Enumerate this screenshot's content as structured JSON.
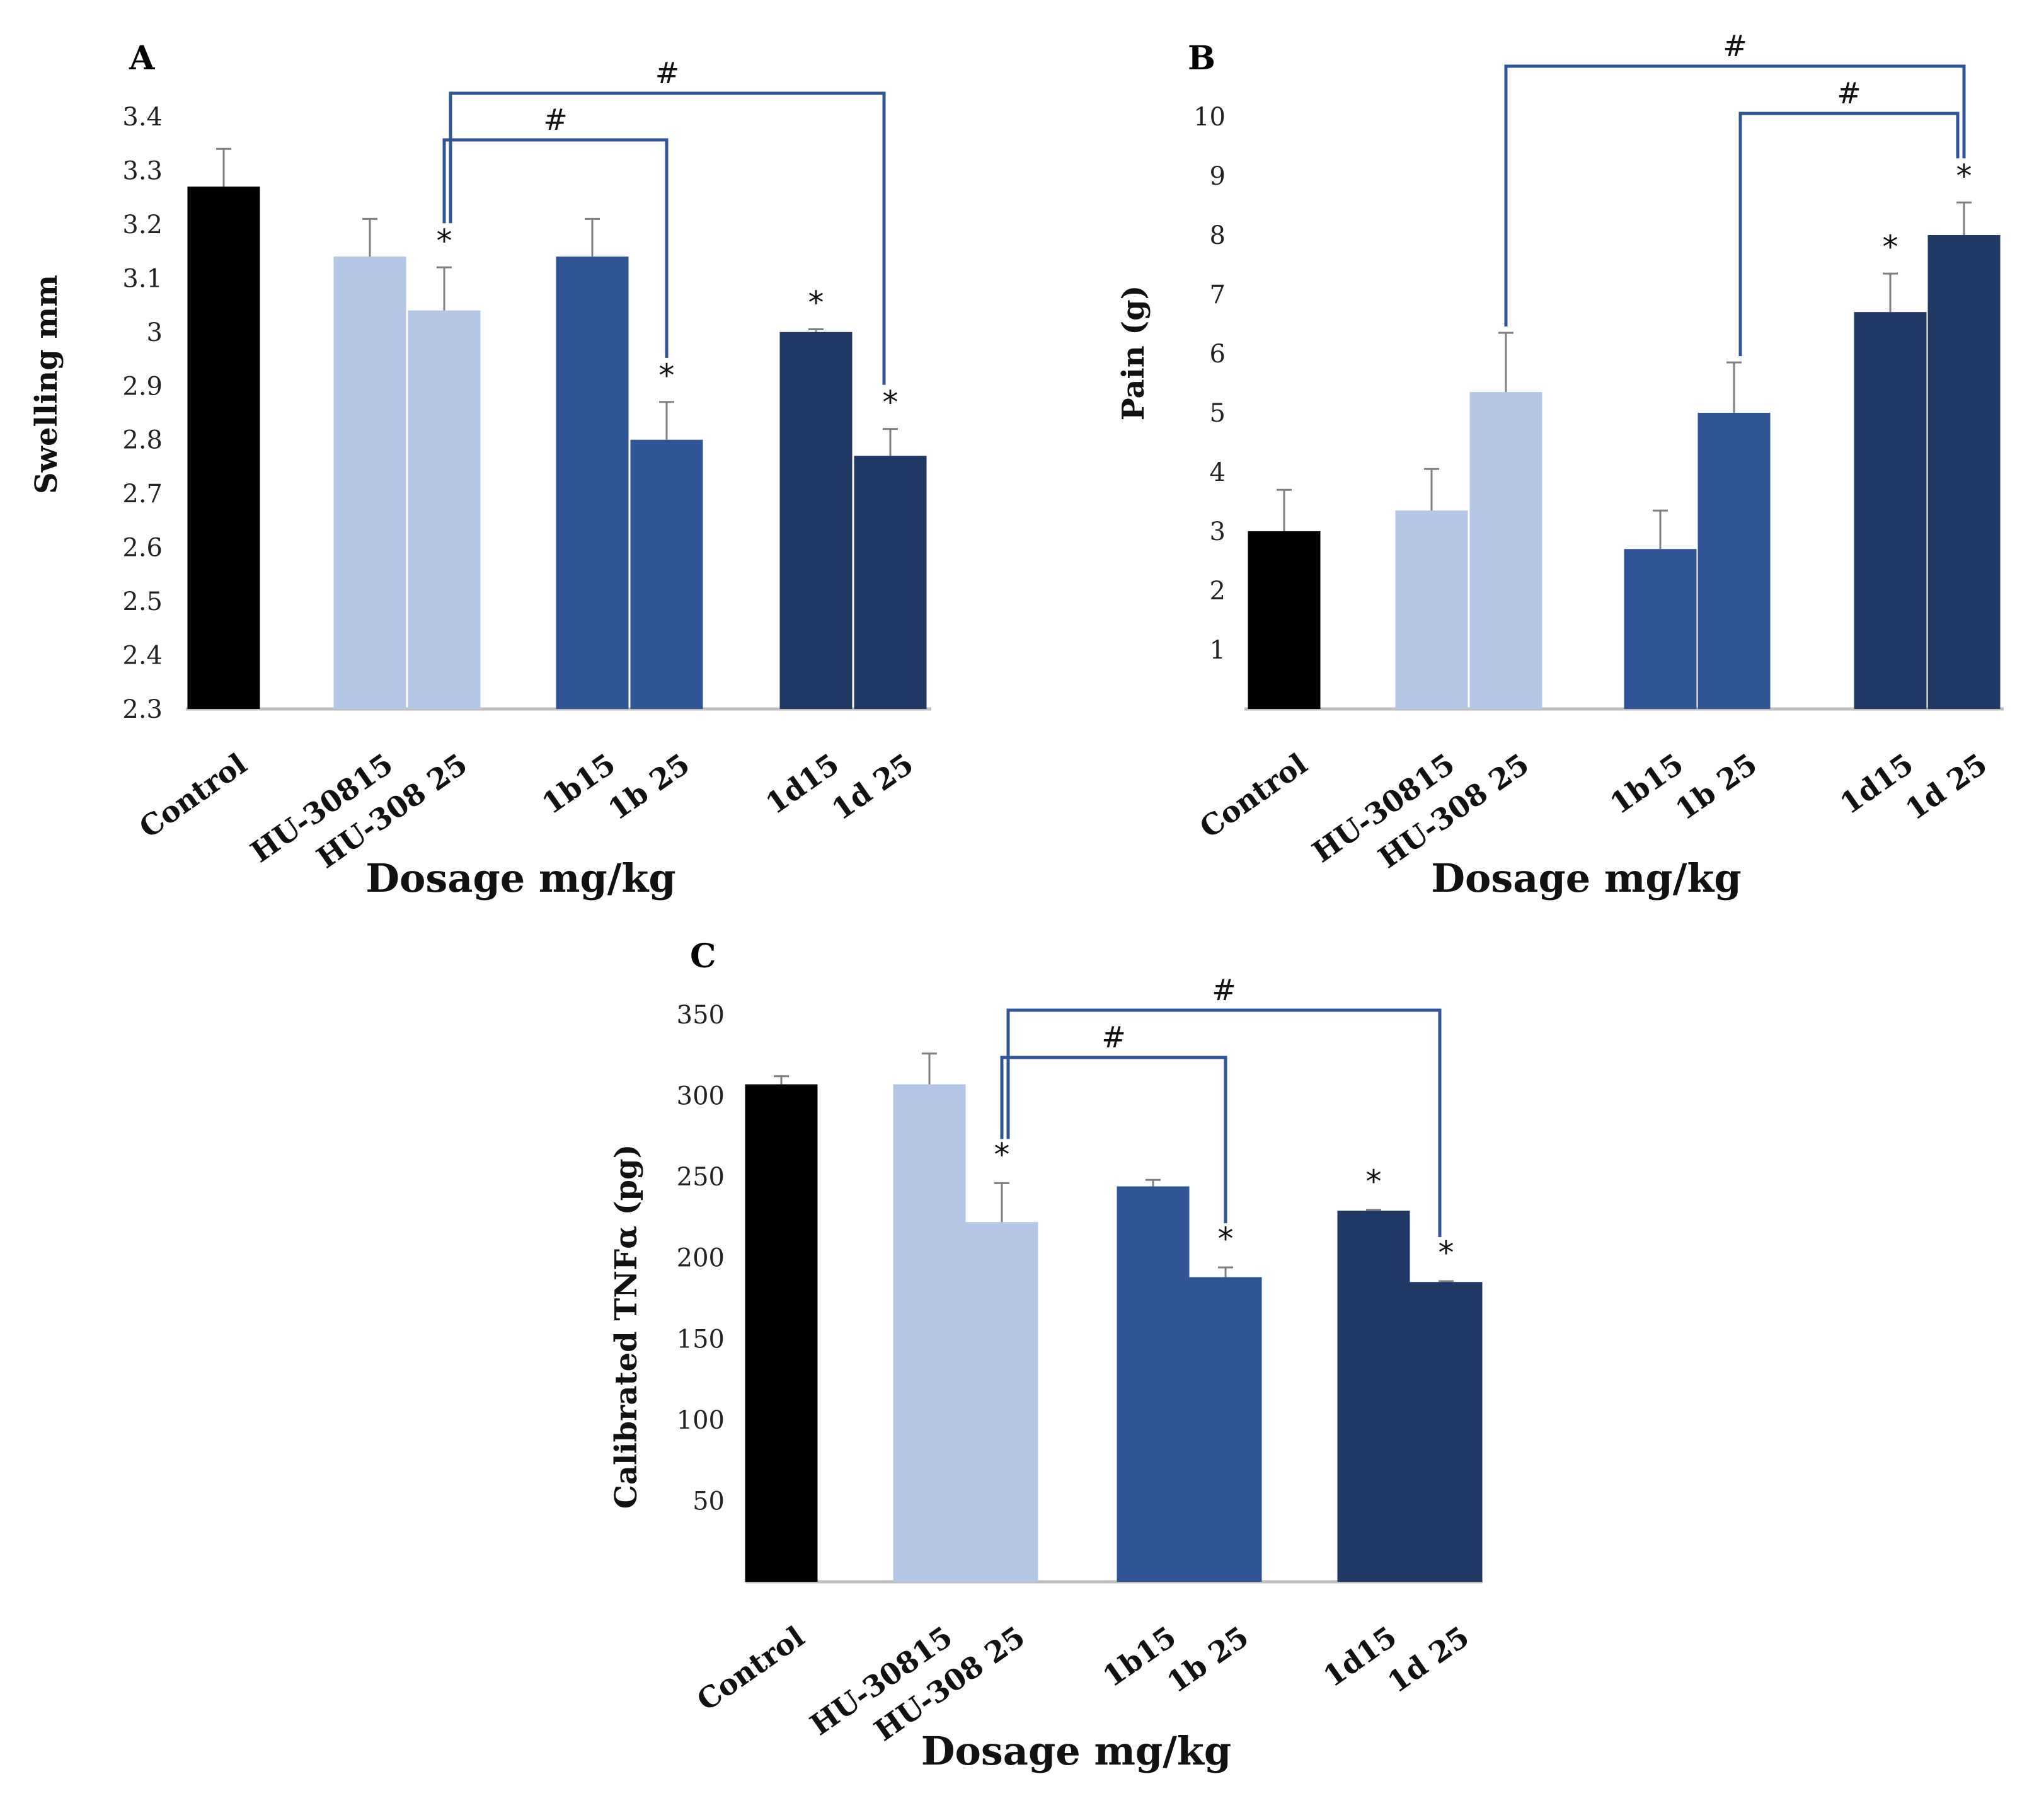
{
  "chart_data": [
    {
      "type": "bar",
      "panel": "A",
      "title": "",
      "xlabel": "Dosage mg/kg",
      "ylabel": "Swelling mm",
      "ylim": [
        2.3,
        3.4
      ],
      "yticks": [
        "2.3",
        "2.4",
        "2.5",
        "2.6",
        "2.7",
        "2.8",
        "2.9",
        "3",
        "3.1",
        "3.2",
        "3.3",
        "3.4"
      ],
      "categories": [
        "Control",
        "HU-30815",
        "HU-308 25",
        "1b15",
        "1b 25",
        "1d15",
        "1d 25"
      ],
      "values": [
        3.27,
        3.14,
        3.04,
        3.14,
        2.8,
        3.0,
        2.77
      ],
      "errors": [
        0.07,
        0.07,
        0.08,
        0.07,
        0.07,
        0.005,
        0.05
      ],
      "significance_stars": [
        "",
        "",
        "*",
        "",
        "*",
        "*",
        "*"
      ],
      "comparisons": [
        {
          "from": "HU-308 25",
          "to": "1b 25",
          "label": "#"
        },
        {
          "from": "HU-308 25",
          "to": "1d 25",
          "label": "#"
        }
      ],
      "colors": [
        "#000000",
        "#b4c7e7",
        "#b4c7e7",
        "#2f5597",
        "#2f5597",
        "#1f3864",
        "#1f3864"
      ]
    },
    {
      "type": "bar",
      "panel": "B",
      "title": "",
      "xlabel": "Dosage mg/kg",
      "ylabel": "Pain (g)",
      "ylim": [
        0,
        10
      ],
      "yticks": [
        "1",
        "2",
        "3",
        "4",
        "5",
        "6",
        "7",
        "8",
        "9",
        "10"
      ],
      "categories": [
        "Control",
        "HU-30815",
        "HU-308 25",
        "1b15",
        "1b 25",
        "1d15",
        "1d 25"
      ],
      "values": [
        3.0,
        3.35,
        5.35,
        2.7,
        5.0,
        6.7,
        8.0
      ],
      "errors": [
        0.7,
        0.7,
        1.0,
        0.65,
        0.85,
        0.65,
        0.55
      ],
      "significance_stars": [
        "",
        "",
        "",
        "",
        "",
        "*",
        "*"
      ],
      "comparisons": [
        {
          "from": "HU-308 25",
          "to": "1d 25",
          "label": "#"
        },
        {
          "from": "1b 25",
          "to": "1d 25",
          "label": "#"
        }
      ],
      "colors": [
        "#000000",
        "#b4c7e7",
        "#b4c7e7",
        "#2f5597",
        "#2f5597",
        "#1f3864",
        "#1f3864"
      ]
    },
    {
      "type": "bar",
      "panel": "C",
      "title": "",
      "xlabel": "Dosage mg/kg",
      "ylabel": "Calibrated TNFα (pg)",
      "ylim": [
        0,
        350
      ],
      "yticks": [
        "50",
        "100",
        "150",
        "200",
        "250",
        "300",
        "350"
      ],
      "categories": [
        "Control",
        "HU-30815",
        "HU-308 25",
        "1b15",
        "1b 25",
        "1d15",
        "1d 25"
      ],
      "values": [
        307,
        307,
        222,
        244,
        188,
        229,
        185
      ],
      "errors": [
        5,
        19,
        24,
        4,
        6,
        0.5,
        0.5
      ],
      "significance_stars": [
        "",
        "",
        "*",
        "",
        "*",
        "*",
        "*"
      ],
      "comparisons": [
        {
          "from": "HU-308 25",
          "to": "1b 25",
          "label": "#"
        },
        {
          "from": "HU-308 25",
          "to": "1d 25",
          "label": "#"
        }
      ],
      "colors": [
        "#000000",
        "#b4c7e7",
        "#b4c7e7",
        "#2f5597",
        "#2f5597",
        "#1f3864",
        "#1f3864"
      ]
    }
  ],
  "bracket_color": "#2f5597",
  "error_bar_color": "#7f7f7f",
  "axis_color": "#bfbfbf"
}
